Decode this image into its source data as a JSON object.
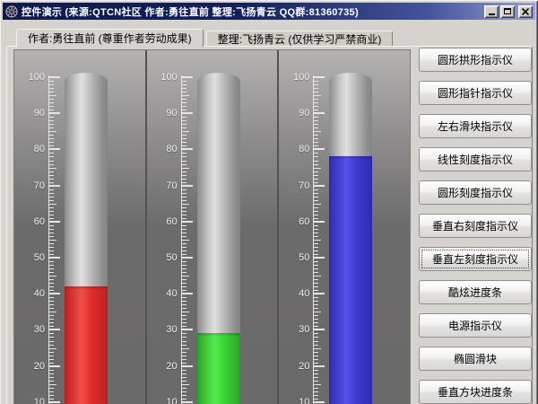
{
  "window": {
    "title": "控件演示 (来源:QTCN社区  作者:勇往直前  整理:飞扬青云  QQ群:81360735)"
  },
  "tabs": [
    {
      "label": "作者:勇往直前 (尊重作者劳动成果)",
      "active": true
    },
    {
      "label": "整理:飞扬青云 (仅供学习严禁商业)",
      "active": false
    }
  ],
  "gauge_scale": {
    "max": 100,
    "major_step": 10,
    "labels": [
      "100",
      "90",
      "80",
      "70",
      "60",
      "50",
      "40",
      "30",
      "20",
      "10"
    ]
  },
  "gauges": [
    {
      "name": "red-thermometer",
      "value": 42,
      "color": "#e22f2c",
      "color_light": "#f1504b",
      "color_dark": "#bf2020"
    },
    {
      "name": "green-thermometer",
      "value": 29,
      "color": "#3cd837",
      "color_light": "#57e950",
      "color_dark": "#2aa626"
    },
    {
      "name": "blue-thermometer",
      "value": 78,
      "color": "#403fd3",
      "color_light": "#5352e9",
      "color_dark": "#2d2cae"
    }
  ],
  "sidebar": {
    "buttons": [
      {
        "label": "圆形拱形指示仪",
        "focused": false
      },
      {
        "label": "圆形指针指示仪",
        "focused": false
      },
      {
        "label": "左右滑块指示仪",
        "focused": false
      },
      {
        "label": "线性刻度指示仪",
        "focused": false
      },
      {
        "label": "圆形刻度指示仪",
        "focused": false
      },
      {
        "label": "垂直右刻度指示仪",
        "focused": false
      },
      {
        "label": "垂直左刻度指示仪",
        "focused": true
      },
      {
        "label": "酷炫进度条",
        "focused": false
      },
      {
        "label": "电源指示仪",
        "focused": false
      },
      {
        "label": "椭圆滑块",
        "focused": false
      },
      {
        "label": "垂直方块进度条",
        "focused": false
      }
    ]
  }
}
